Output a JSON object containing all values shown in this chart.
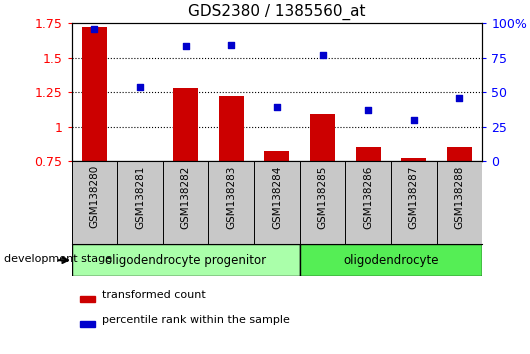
{
  "title": "GDS2380 / 1385560_at",
  "samples": [
    "GSM138280",
    "GSM138281",
    "GSM138282",
    "GSM138283",
    "GSM138284",
    "GSM138285",
    "GSM138286",
    "GSM138287",
    "GSM138288"
  ],
  "transformed_count": [
    1.72,
    0.75,
    1.28,
    1.22,
    0.82,
    1.09,
    0.85,
    0.77,
    0.85
  ],
  "percentile_rank": [
    96,
    54,
    83,
    84,
    39,
    77,
    37,
    30,
    46
  ],
  "ylim_left": [
    0.75,
    1.75
  ],
  "ylim_right": [
    0,
    100
  ],
  "yticks_left": [
    0.75,
    1.0,
    1.25,
    1.5,
    1.75
  ],
  "yticks_right": [
    0,
    25,
    50,
    75,
    100
  ],
  "ytick_labels_left": [
    "0.75",
    "1",
    "1.25",
    "1.5",
    "1.75"
  ],
  "ytick_labels_right": [
    "0",
    "25",
    "50",
    "75",
    "100%"
  ],
  "bar_color": "#cc0000",
  "scatter_color": "#0000cc",
  "group1_label": "oligodendrocyte progenitor",
  "group2_label": "oligodendrocyte",
  "group1_count": 5,
  "group2_count": 4,
  "group1_color": "#aaffaa",
  "group2_color": "#55ee55",
  "legend_red_label": "transformed count",
  "legend_blue_label": "percentile rank within the sample",
  "dev_stage_label": "development stage",
  "hline_values": [
    1.0,
    1.25,
    1.5
  ],
  "bar_bottom": 0.75,
  "bar_width": 0.55,
  "xticklabel_bg": "#c8c8c8"
}
